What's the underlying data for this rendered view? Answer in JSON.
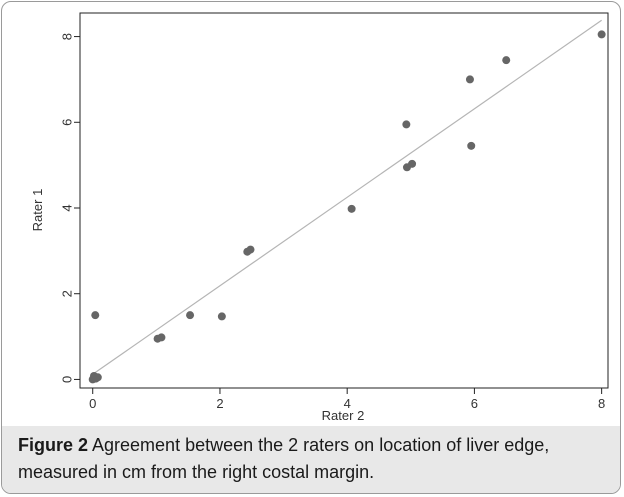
{
  "chart_data": {
    "type": "scatter",
    "xlabel": "Rater 2",
    "ylabel": "Rater 1",
    "xlim": [
      -0.2,
      8.1
    ],
    "ylim": [
      -0.2,
      8.55
    ],
    "x_ticks": [
      "0",
      "2",
      "4",
      "6",
      "8"
    ],
    "y_ticks": [
      "0",
      "2",
      "4",
      "6",
      "8"
    ],
    "grid": false,
    "legend": "none",
    "point_color": "#666666",
    "fit_line_color": "#b5b5b5",
    "points": [
      {
        "x": 0.0,
        "y": 0.0
      },
      {
        "x": 0.02,
        "y": 0.08
      },
      {
        "x": 0.05,
        "y": 0.02
      },
      {
        "x": 0.08,
        "y": 0.05
      },
      {
        "x": 0.04,
        "y": 1.5
      },
      {
        "x": 1.02,
        "y": 0.95
      },
      {
        "x": 1.08,
        "y": 0.98
      },
      {
        "x": 1.53,
        "y": 1.5
      },
      {
        "x": 2.03,
        "y": 1.47
      },
      {
        "x": 2.43,
        "y": 2.98
      },
      {
        "x": 2.48,
        "y": 3.03
      },
      {
        "x": 4.07,
        "y": 3.98
      },
      {
        "x": 4.93,
        "y": 5.95
      },
      {
        "x": 4.94,
        "y": 4.95
      },
      {
        "x": 5.02,
        "y": 5.03
      },
      {
        "x": 5.93,
        "y": 7.0
      },
      {
        "x": 5.95,
        "y": 5.45
      },
      {
        "x": 6.5,
        "y": 7.45
      },
      {
        "x": 8.0,
        "y": 8.05
      }
    ],
    "fit_line": {
      "x": [
        0.0,
        8.0
      ],
      "y": [
        0.12,
        8.38
      ]
    }
  },
  "caption": {
    "label": "Figure 2",
    "text": " Agreement between the 2 raters on location of liver edge, measured in cm from the right costal margin."
  }
}
